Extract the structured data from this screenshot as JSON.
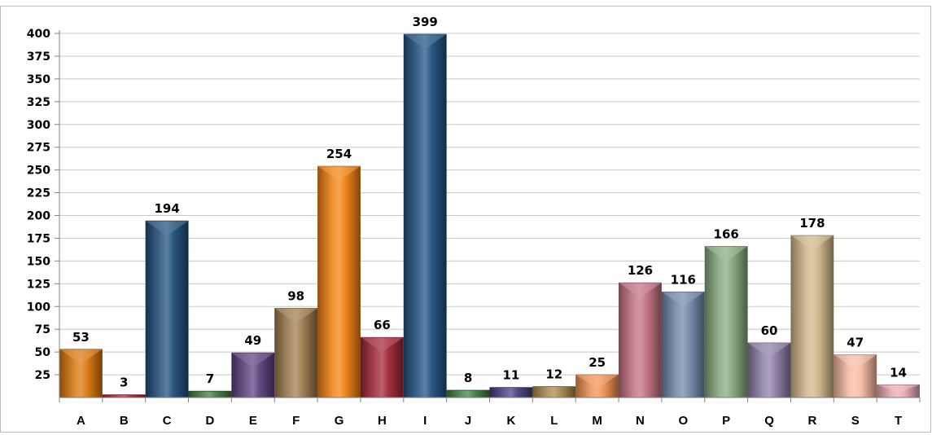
{
  "chart_data": {
    "type": "bar",
    "title": "",
    "xlabel": "",
    "ylabel": "",
    "categories": [
      "A",
      "B",
      "C",
      "D",
      "E",
      "F",
      "G",
      "H",
      "I",
      "J",
      "K",
      "L",
      "M",
      "N",
      "O",
      "P",
      "Q",
      "R",
      "S",
      "T"
    ],
    "values": [
      53,
      3,
      194,
      7,
      49,
      98,
      254,
      66,
      399,
      8,
      11,
      12,
      25,
      126,
      116,
      166,
      60,
      178,
      47,
      14
    ],
    "data_labels": [
      "53",
      "3",
      "194",
      "7",
      "49",
      "98",
      "254",
      "66",
      "399",
      "8",
      "11",
      "12",
      "25",
      "126",
      "116",
      "166",
      "60",
      "178",
      "47",
      "14"
    ],
    "ylim": [
      0,
      400
    ],
    "yticks": [
      25,
      50,
      75,
      100,
      125,
      150,
      175,
      200,
      225,
      250,
      275,
      300,
      325,
      350,
      375,
      400
    ],
    "ytick_labels": [
      "25",
      "50",
      "75",
      "100",
      "125",
      "150",
      "175",
      "200",
      "225",
      "250",
      "275",
      "300",
      "325",
      "350",
      "375",
      "400"
    ],
    "grid": true,
    "legend": "none",
    "bar_colors": [
      "#d9760a",
      "#b8243a",
      "#1f4e79",
      "#3d7a3d",
      "#5b3f7e",
      "#9c7a4c",
      "#f08010",
      "#a02535",
      "#205080",
      "#3f8040",
      "#4a3e82",
      "#a8884a",
      "#f09050",
      "#c07080",
      "#7088a8",
      "#84a87c",
      "#8c7ca6",
      "#cdb487",
      "#f5b8a0",
      "#e8a8b0"
    ]
  }
}
